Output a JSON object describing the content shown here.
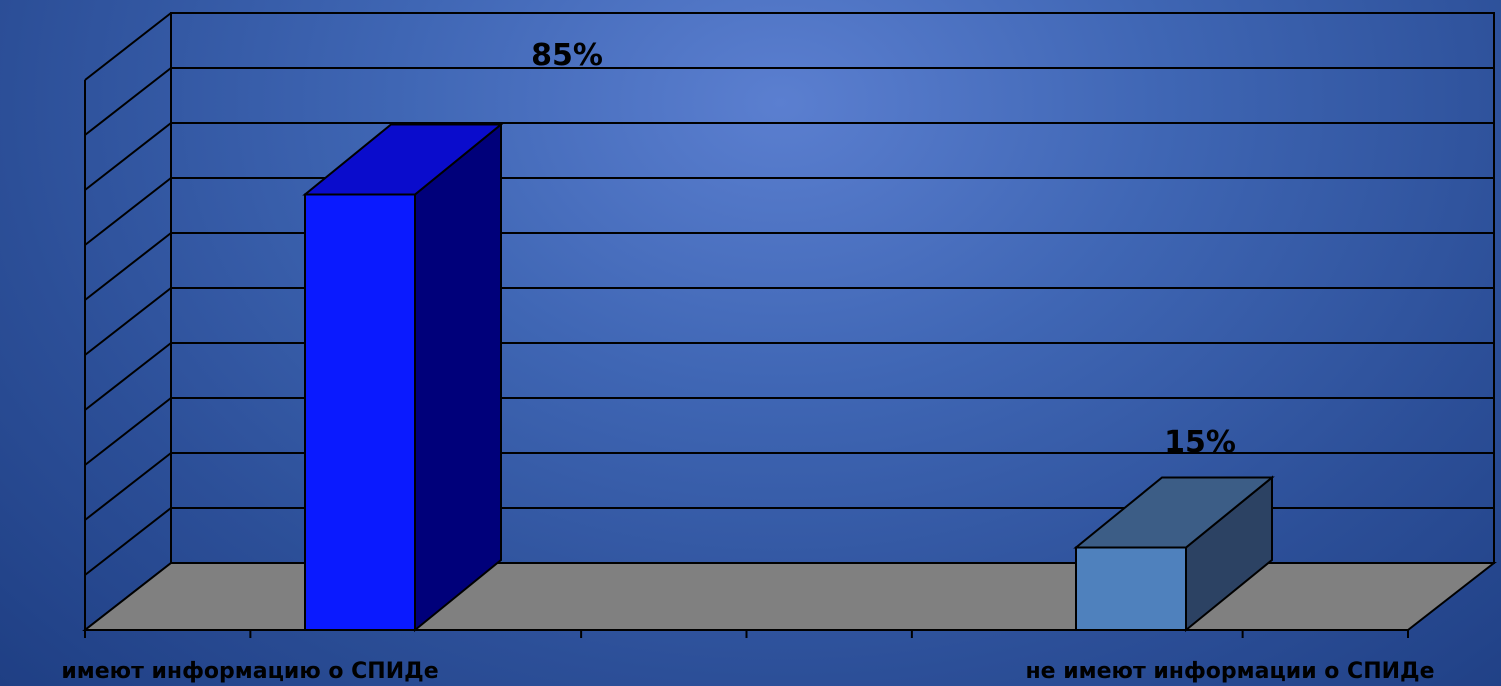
{
  "chart_data": {
    "type": "bar",
    "style": "3d",
    "categories": [
      "имеют информацию о СПИДе",
      "не имеют информации о СПИДе"
    ],
    "values": [
      85,
      15
    ],
    "data_labels": [
      "85%",
      "15%"
    ],
    "ylim": [
      0,
      100
    ],
    "grid": true,
    "legend": "none",
    "colors": {
      "bar_1_front": "#0a1aff",
      "bar_1_top": "#0a0ccc",
      "bar_1_side": "#00007a",
      "bar_2_front": "#4f81bd",
      "bar_2_top": "#3c5d86",
      "bar_2_side": "#2c4263",
      "floor": "#808080"
    }
  }
}
